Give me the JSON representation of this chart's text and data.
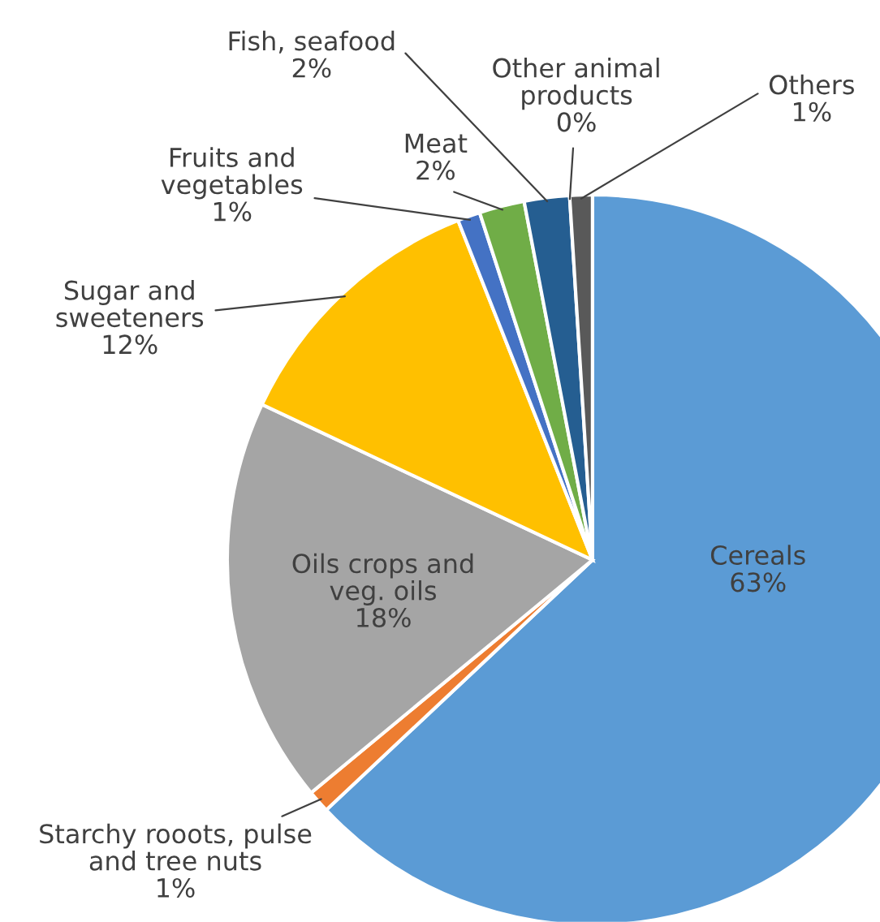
{
  "chart_data": {
    "type": "pie",
    "categories": [
      "Cereals",
      "Starchy rooots, pulse and tree nuts",
      "Oils crops and veg. oils",
      "Sugar and sweeteners",
      "Fruits and vegetables",
      "Meat",
      "Fish, seafood",
      "Other animal products",
      "Others"
    ],
    "values": [
      63,
      1,
      18,
      12,
      1,
      2,
      2,
      0,
      1
    ],
    "colors": [
      "#5b9bd5",
      "#ed7d31",
      "#a5a5a5",
      "#ffc000",
      "#4472c4",
      "#70ad47",
      "#255e91",
      "#9e480e",
      "#595959"
    ],
    "value_labels": [
      "63%",
      "1%",
      "18%",
      "12%",
      "1%",
      "2%",
      "2%",
      "0%",
      "1%"
    ]
  }
}
